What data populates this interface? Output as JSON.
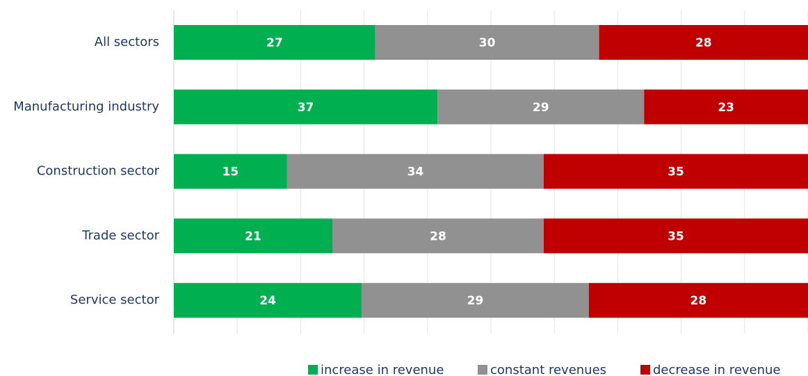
{
  "chart_data": {
    "type": "stacked_bar_percent",
    "normalize": true,
    "categories": [
      "All sectors",
      "Manufacturing industry",
      "Construction sector",
      "Trade sector",
      "Service sector"
    ],
    "series": [
      {
        "name": "increase in revenue",
        "color": "#00b050",
        "values": [
          27,
          37,
          15,
          21,
          24
        ]
      },
      {
        "name": "constant revenues",
        "color": "#919191",
        "values": [
          30,
          29,
          34,
          28,
          29
        ]
      },
      {
        "name": "decrease in revenue",
        "color": "#c00000",
        "values": [
          28,
          23,
          35,
          35,
          28
        ]
      }
    ],
    "xlim": [
      0,
      100
    ],
    "xticks": [
      0,
      10,
      20,
      30,
      40,
      50,
      60,
      70,
      80,
      90,
      100
    ],
    "grid": true,
    "legend": "bottom"
  }
}
